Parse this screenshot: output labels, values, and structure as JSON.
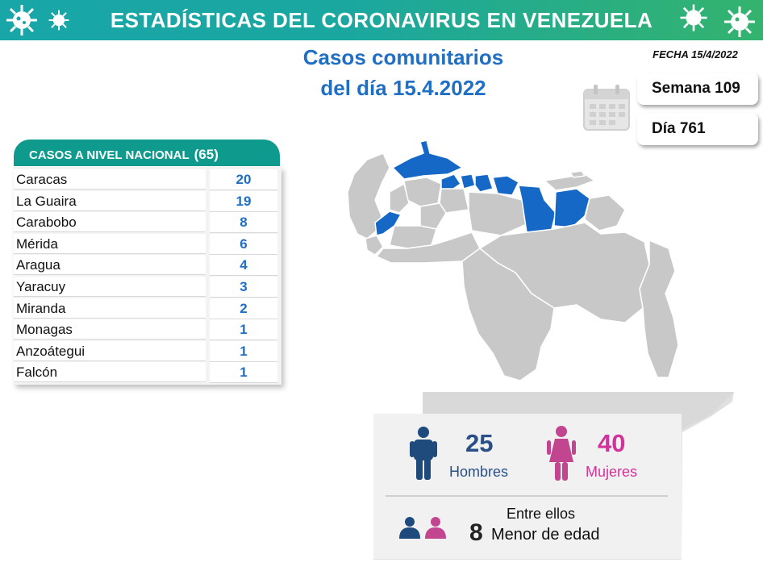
{
  "header": {
    "title": "ESTADÍSTICAS DEL CORONAVIRUS EN VENEZUELA"
  },
  "subtitle": {
    "line1": "Casos comunitarios",
    "line2": "del día 15.4.2022"
  },
  "fecha": "FECHA 15/4/2022",
  "semana": "Semana 109",
  "dia": "Día 761",
  "table": {
    "title": "CASOS A NIVEL NACIONAL",
    "total": "(65)",
    "rows": [
      {
        "state": "Caracas",
        "cases": "20"
      },
      {
        "state": "La Guaira",
        "cases": "19"
      },
      {
        "state": "Carabobo",
        "cases": "8"
      },
      {
        "state": "Mérida",
        "cases": "6"
      },
      {
        "state": "Aragua",
        "cases": "4"
      },
      {
        "state": "Yaracuy",
        "cases": "3"
      },
      {
        "state": "Miranda",
        "cases": "2"
      },
      {
        "state": "Monagas",
        "cases": "1"
      },
      {
        "state": "Anzoátegui",
        "cases": "1"
      },
      {
        "state": "Falcón",
        "cases": "1"
      }
    ]
  },
  "stats": {
    "men": {
      "value": "25",
      "label": "Hombres"
    },
    "women": {
      "value": "40",
      "label": "Mujeres"
    },
    "minors_intro": "Entre ellos",
    "minors_value": "8",
    "minors_label": "Menor de edad"
  },
  "colors": {
    "banner": "#19a6a8",
    "accent_blue": "#1f6fc4",
    "map_highlight": "#1668c6",
    "map_base": "#c8c8c8",
    "men": "#1e4a7c",
    "women": "#c2468f",
    "table_header": "#0f9a8e"
  },
  "icons": [
    "virus-icon",
    "calendar-icon",
    "man-icon",
    "woman-icon",
    "children-icon"
  ]
}
